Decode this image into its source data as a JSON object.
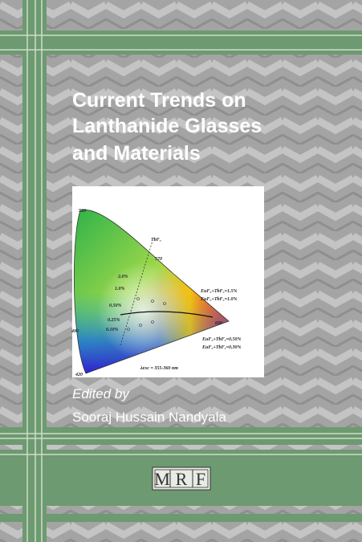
{
  "cover": {
    "title_lines": [
      "Current Trends on",
      "Lanthanide Glasses",
      "and Materials"
    ],
    "editor_label": "Edited by",
    "editor": "Sooraj Hussain Nandyala",
    "publisher_logo": [
      "M",
      "R",
      "F"
    ]
  },
  "figure": {
    "labels": [
      "520",
      "TbF₃",
      "570",
      "2.0%",
      "1.0%",
      "0.50%",
      "0.25%",
      "0.10%",
      "EuF₃+TbF₃=1.5%",
      "EuF₃+TbF₃=1.0%",
      "600",
      "EuF₃+TbF₃=0.50%",
      "EuF₃+TbF₃=0.30%",
      "490",
      "420",
      "λexc = 355-360 nm"
    ]
  }
}
